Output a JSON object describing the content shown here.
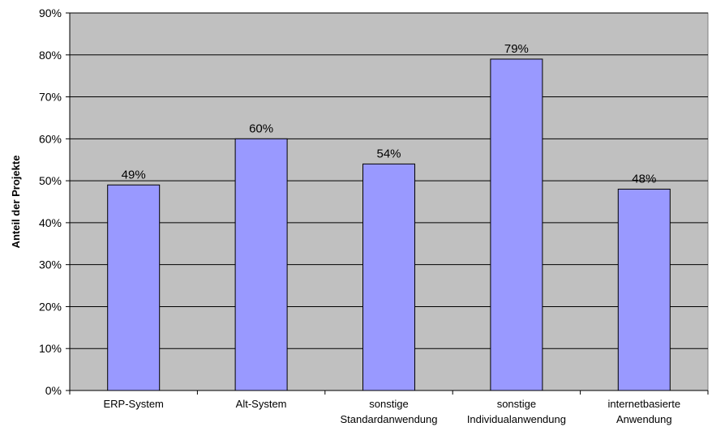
{
  "chart_data": {
    "type": "bar",
    "categories": [
      [
        "ERP-System"
      ],
      [
        "Alt-System"
      ],
      [
        "sonstige",
        "Standardanwendung"
      ],
      [
        "sonstige",
        "Individualanwendung"
      ],
      [
        "internetbasierte",
        "Anwendung"
      ]
    ],
    "values": [
      49,
      60,
      54,
      79,
      48
    ],
    "data_labels": [
      "49%",
      "60%",
      "54%",
      "79%",
      "48%"
    ],
    "ylabel": "Anteil der Projekte",
    "ylim": [
      0,
      90
    ],
    "yticks": [
      "0%",
      "10%",
      "20%",
      "30%",
      "40%",
      "50%",
      "60%",
      "70%",
      "80%",
      "90%"
    ],
    "grid": true,
    "colors": {
      "plot_background": "#c0c0c0",
      "bar_fill": "#9999ff",
      "bar_stroke": "#000000",
      "grid": "#000000"
    }
  }
}
